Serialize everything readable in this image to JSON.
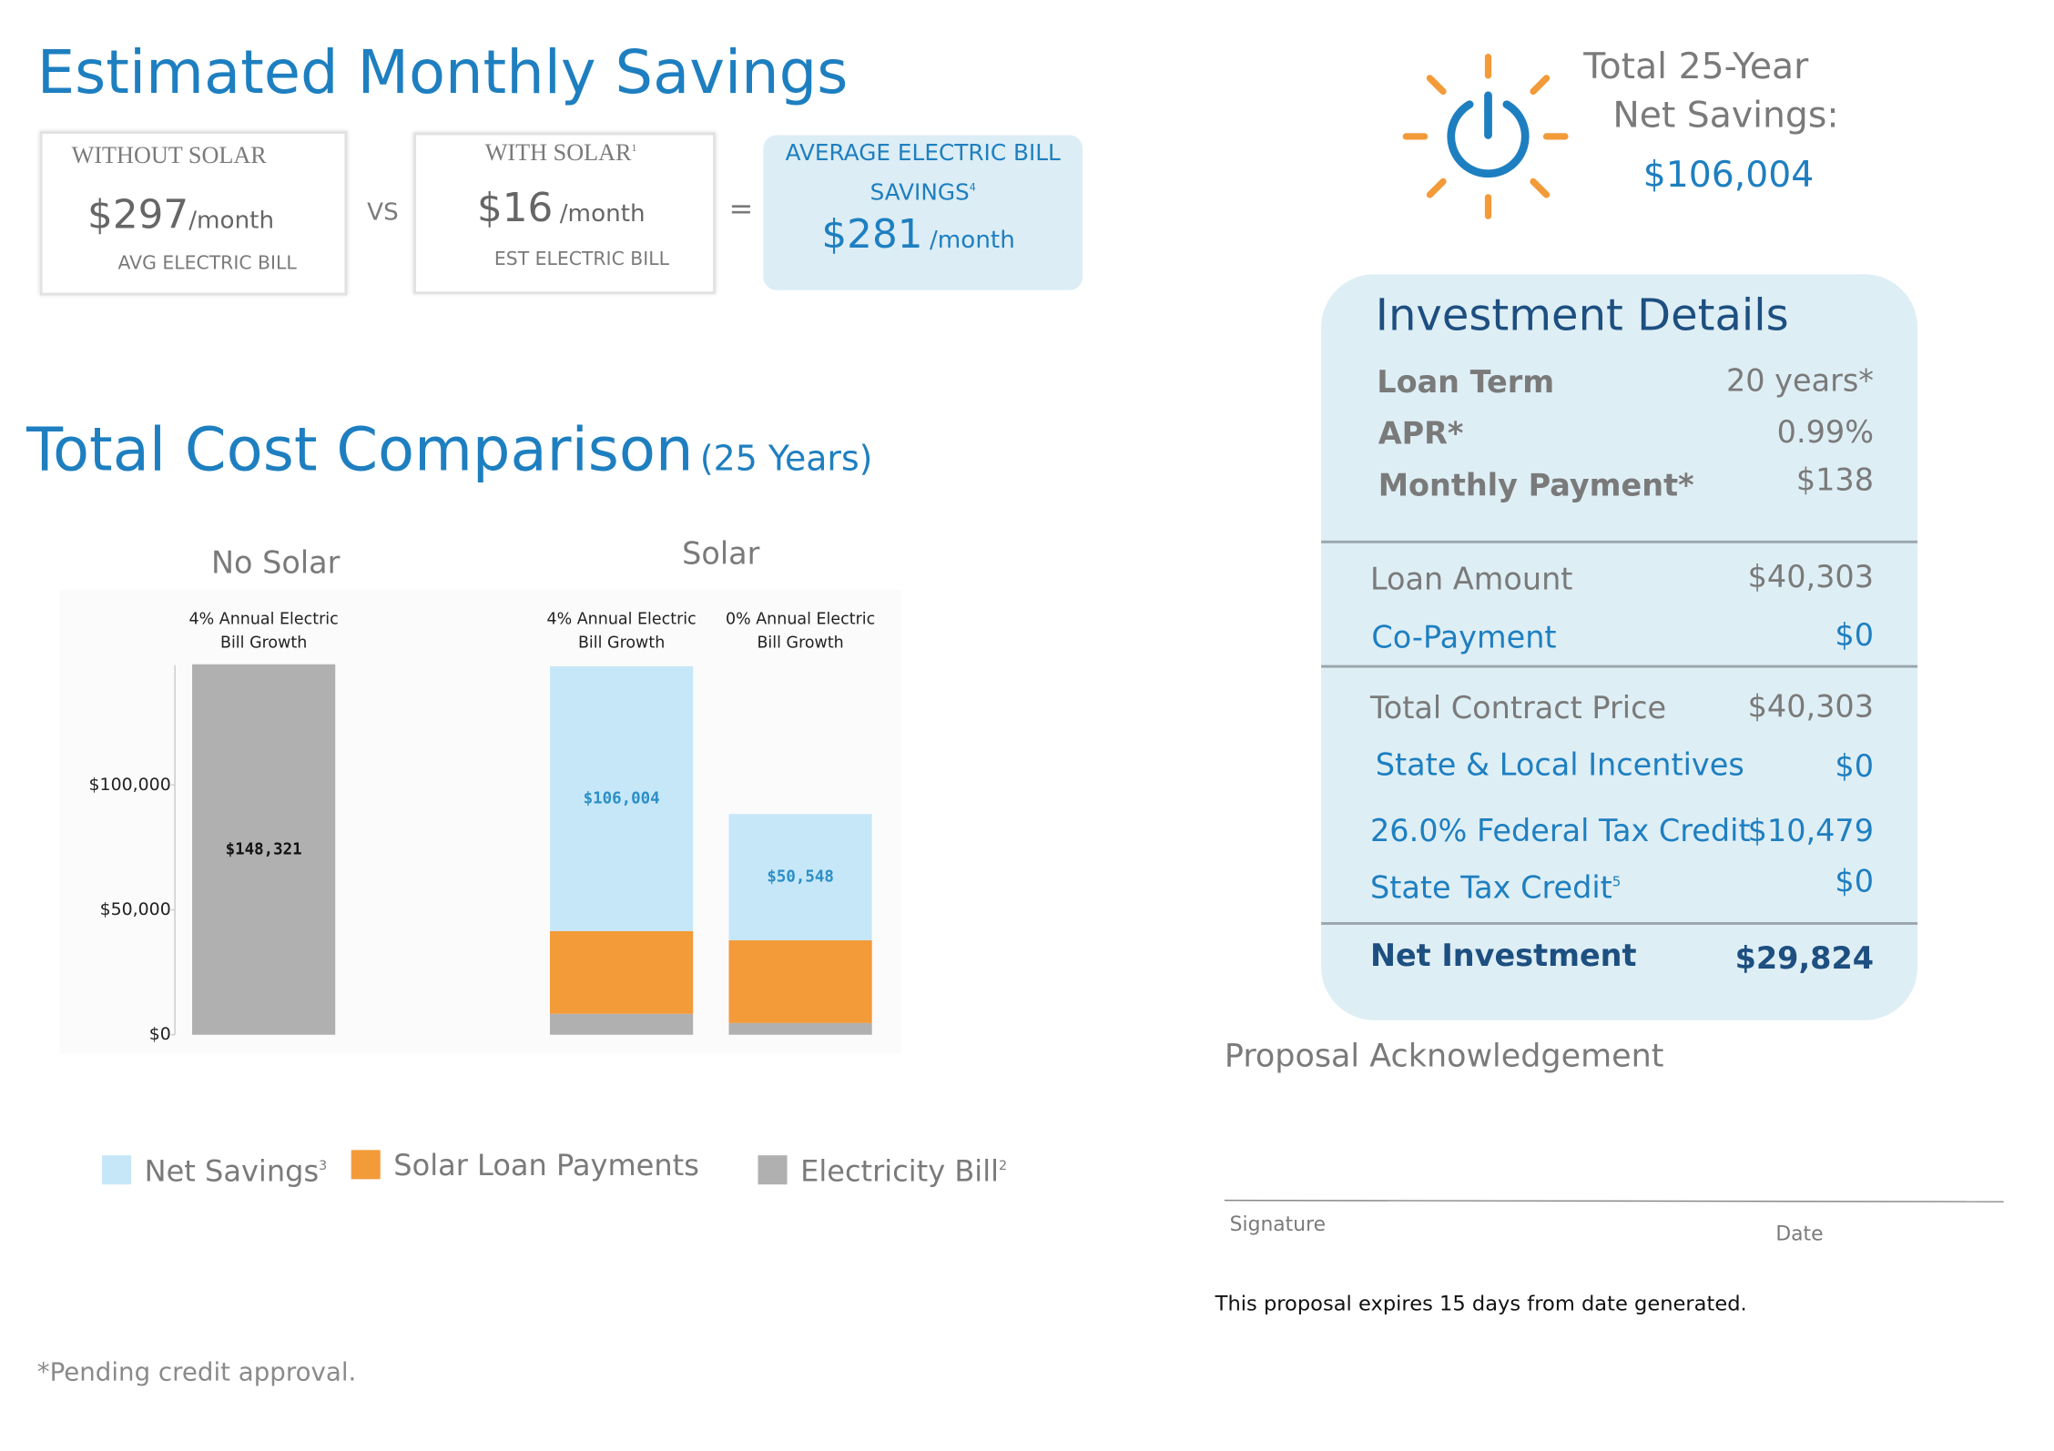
{
  "savings": {
    "title": "Estimated Monthly Savings",
    "without_solar": {
      "heading": "WITHOUT SOLAR",
      "amount": "$297",
      "unit": "/month",
      "caption": "AVG ELECTRIC BILL"
    },
    "operator_vs": "VS",
    "with_solar": {
      "heading": "WITH SOLAR",
      "note": "1",
      "amount": "$16",
      "unit": "/month",
      "caption": "EST ELECTRIC BILL"
    },
    "operator_equals": "=",
    "average_savings": {
      "heading": "AVERAGE ELECTRIC BILL SAVINGS",
      "note": "4",
      "amount": "$281",
      "unit": "/month"
    }
  },
  "net_savings": {
    "line1": "Total 25-Year",
    "line2": "Net Savings:",
    "amount": "$106,004"
  },
  "investment": {
    "title": "Investment Details",
    "sections": [
      [
        {
          "label": "Loan Term",
          "value": "20 years*"
        },
        {
          "label": "APR*",
          "value": "0.99%"
        },
        {
          "label": "Monthly Payment*",
          "value": "$138"
        }
      ],
      [
        {
          "label": "Loan Amount",
          "value": "$40,303"
        },
        {
          "label": "Co-Payment",
          "value": "$0"
        }
      ],
      [
        {
          "label": "Total Contract Price",
          "value": "$40,303"
        },
        {
          "label": "State & Local Incentives",
          "value": "$0"
        },
        {
          "label": "26.0% Federal Tax Credit",
          "value": "$10,479"
        },
        {
          "label": "State Tax Credit",
          "note": "5",
          "value": "$0"
        }
      ],
      [
        {
          "label": "Net Investment",
          "value": "$29,824"
        }
      ]
    ]
  },
  "chart_data": {
    "type": "stacked_bar",
    "title": "Total Cost Comparison",
    "subtitle": "(25 Years)",
    "groups": [
      "No Solar",
      "Solar"
    ],
    "categories": [
      "4% Annual Electric Bill Growth",
      "4% Annual Electric Bill Growth",
      "0% Annual Electric Bill Growth"
    ],
    "series": [
      {
        "name": "Net Savings",
        "footnote": "3",
        "color": "#c6e7f8",
        "values": [
          null,
          106004,
          50548
        ],
        "value_labels": [
          null,
          "$106,004",
          "$50,548"
        ]
      },
      {
        "name": "Solar Loan Payments",
        "color": "#f39a39",
        "values": [
          null,
          33120,
          33120
        ]
      },
      {
        "name": "Electricity Bill",
        "footnote": "2",
        "color": "#b0b0b0",
        "values": [
          148321,
          8400,
          4700
        ],
        "value_labels": [
          "$148,321",
          null,
          null
        ]
      }
    ],
    "ylim": [
      0,
      148000
    ],
    "yticks": [
      {
        "value": 0,
        "label": "$0"
      },
      {
        "value": 50000,
        "label": "$50,000"
      },
      {
        "value": 100000,
        "label": "$100,000"
      }
    ]
  },
  "acknowledgement": {
    "title": "Proposal Acknowledgement",
    "signature": "Signature",
    "date": "Date",
    "expiry": "This proposal expires 15 days from date generated."
  },
  "footnote": "*Pending credit approval."
}
